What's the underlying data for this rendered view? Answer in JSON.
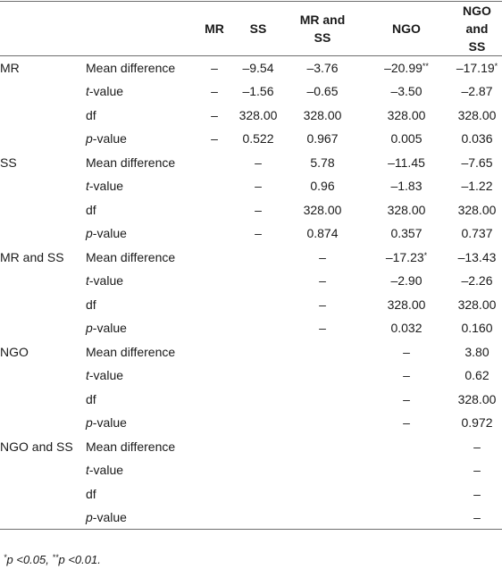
{
  "header": {
    "corner": "",
    "columns": [
      "MR",
      "SS",
      "MR and SS",
      "NGO",
      "NGO and SS"
    ]
  },
  "rows": [
    {
      "group": "MR",
      "stat": "Mean difference",
      "cells": [
        "–",
        "–9.54",
        "–3.76",
        "–20.99**",
        "–17.19*"
      ]
    },
    {
      "group": "",
      "stat": "t-value",
      "cells": [
        "–",
        "–1.56",
        "–0.65",
        "–3.50",
        "–2.87"
      ]
    },
    {
      "group": "",
      "stat": "df",
      "cells": [
        "–",
        "328.00",
        "328.00",
        "328.00",
        "328.00"
      ]
    },
    {
      "group": "",
      "stat": "p-value",
      "cells": [
        "–",
        "0.522",
        "0.967",
        "0.005",
        "0.036"
      ]
    },
    {
      "group": "SS",
      "stat": "Mean difference",
      "cells": [
        "",
        "–",
        "5.78",
        "–11.45",
        "–7.65"
      ]
    },
    {
      "group": "",
      "stat": "t-value",
      "cells": [
        "",
        "–",
        "0.96",
        "–1.83",
        "–1.22"
      ]
    },
    {
      "group": "",
      "stat": "df",
      "cells": [
        "",
        "–",
        "328.00",
        "328.00",
        "328.00"
      ]
    },
    {
      "group": "",
      "stat": "p-value",
      "cells": [
        "",
        "–",
        "0.874",
        "0.357",
        "0.737"
      ]
    },
    {
      "group": "MR and SS",
      "stat": "Mean difference",
      "cells": [
        "",
        "",
        "–",
        "–17.23*",
        "–13.43"
      ]
    },
    {
      "group": "",
      "stat": "t-value",
      "cells": [
        "",
        "",
        "–",
        "–2.90",
        "–2.26"
      ]
    },
    {
      "group": "",
      "stat": "df",
      "cells": [
        "",
        "",
        "–",
        "328.00",
        "328.00"
      ]
    },
    {
      "group": "",
      "stat": "p-value",
      "cells": [
        "",
        "",
        "–",
        "0.032",
        "0.160"
      ]
    },
    {
      "group": "NGO",
      "stat": "Mean difference",
      "cells": [
        "",
        "",
        "",
        "–",
        "3.80"
      ]
    },
    {
      "group": "",
      "stat": "t-value",
      "cells": [
        "",
        "",
        "",
        "–",
        "0.62"
      ]
    },
    {
      "group": "",
      "stat": "df",
      "cells": [
        "",
        "",
        "",
        "–",
        "328.00"
      ]
    },
    {
      "group": "",
      "stat": "p-value",
      "cells": [
        "",
        "",
        "",
        "–",
        "0.972"
      ]
    },
    {
      "group": "NGO and SS",
      "stat": "Mean difference",
      "cells": [
        "",
        "",
        "",
        "",
        "–"
      ]
    },
    {
      "group": "",
      "stat": "t-value",
      "cells": [
        "",
        "",
        "",
        "",
        "–"
      ]
    },
    {
      "group": "",
      "stat": "df",
      "cells": [
        "",
        "",
        "",
        "",
        "–"
      ]
    },
    {
      "group": "",
      "stat": "p-value",
      "cells": [
        "",
        "",
        "",
        "",
        "–"
      ]
    }
  ],
  "footnote": "*p <0.05, **p <0.01."
}
